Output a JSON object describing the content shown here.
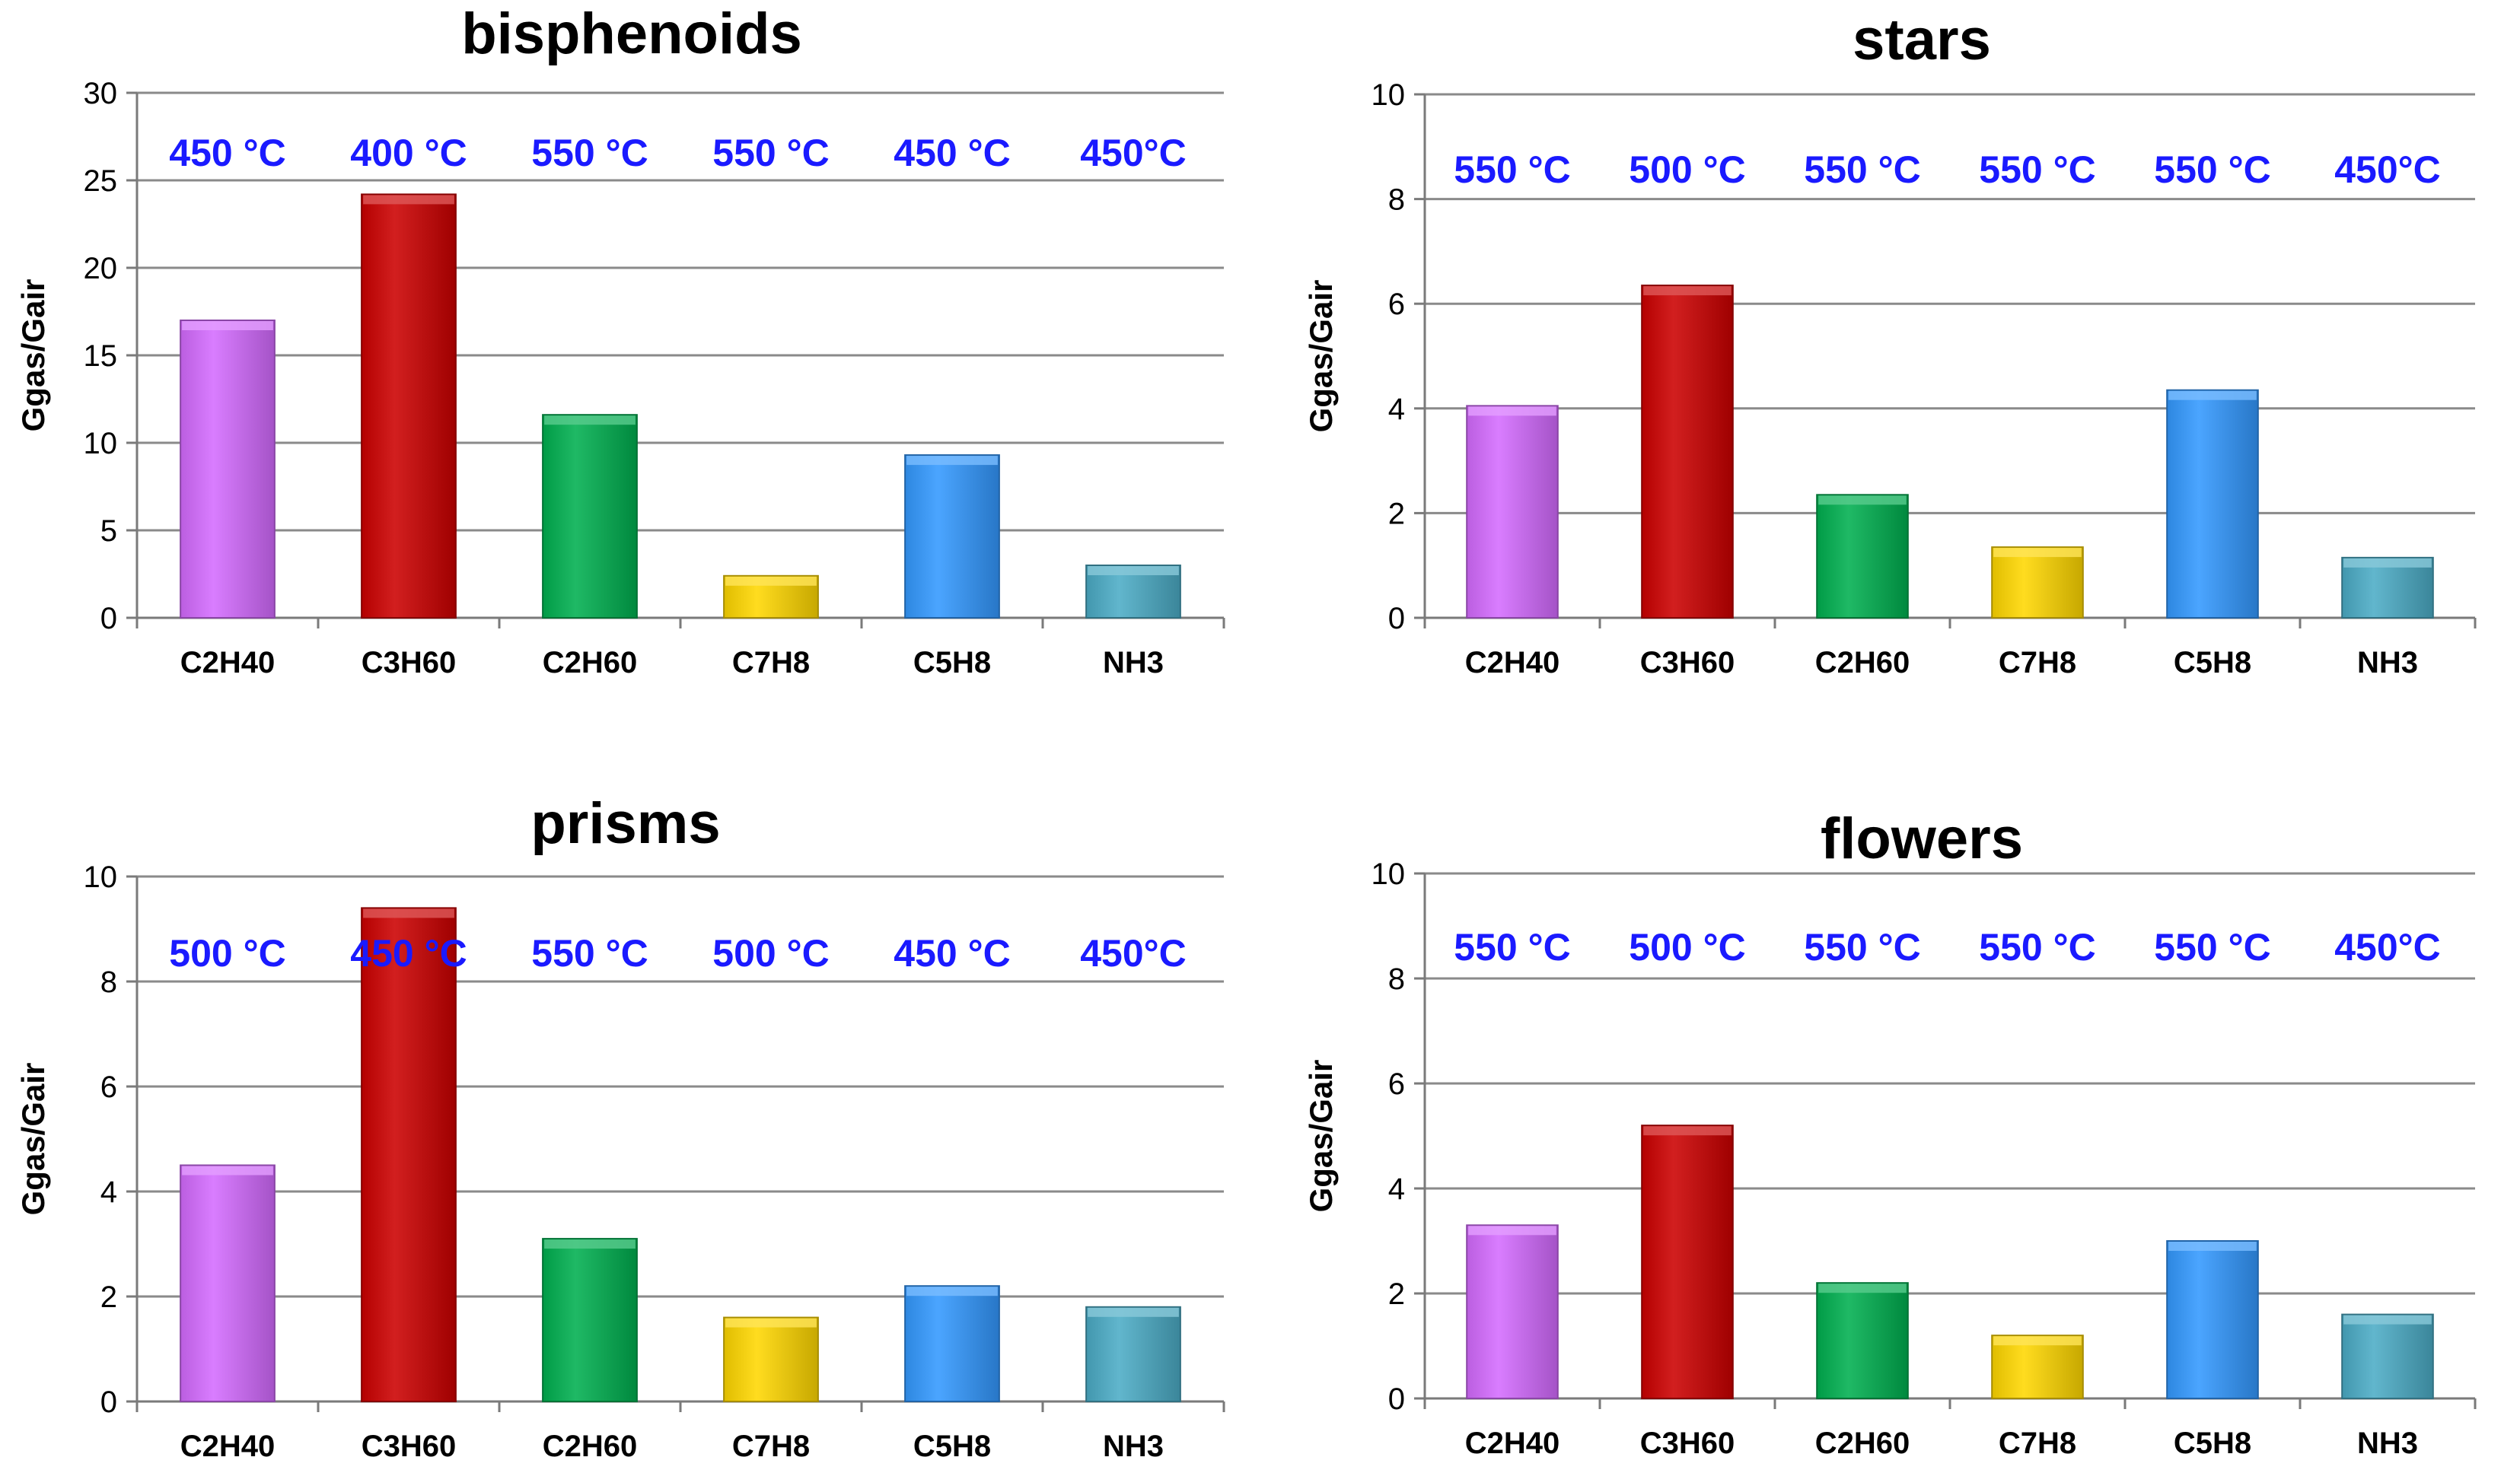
{
  "chart_data": [
    {
      "type": "bar",
      "title": "bisphenoids",
      "ylabel": "Ggas/Gair",
      "xlabel": "",
      "ylim": [
        0,
        30
      ],
      "yticks": [
        0,
        5,
        10,
        15,
        20,
        25,
        30
      ],
      "categories": [
        "C2H40",
        "C3H60",
        "C2H60",
        "C7H8",
        "C5H8",
        "NH3"
      ],
      "values": [
        17,
        24.2,
        11.6,
        2.4,
        9.3,
        3.0
      ],
      "annotations": [
        "450 °C",
        "400 °C",
        "550 °C",
        "550 °C",
        "450 °C",
        "450°C"
      ],
      "colors": [
        "#d46bff",
        "#cc0000",
        "#00b050",
        "#ffd700",
        "#3399ff",
        "#4bacc6"
      ],
      "grid": true
    },
    {
      "type": "bar",
      "title": "stars",
      "ylabel": "Ggas/Gair",
      "xlabel": "",
      "ylim": [
        0,
        10
      ],
      "yticks": [
        0,
        2,
        4,
        6,
        8,
        10
      ],
      "categories": [
        "C2H40",
        "C3H60",
        "C2H60",
        "C7H8",
        "C5H8",
        "NH3"
      ],
      "values": [
        4.05,
        6.35,
        2.35,
        1.35,
        4.35,
        1.15
      ],
      "annotations": [
        "550 °C",
        "500 °C",
        "550 °C",
        "550 °C",
        "550 °C",
        "450°C"
      ],
      "colors": [
        "#d46bff",
        "#cc0000",
        "#00b050",
        "#ffd700",
        "#3399ff",
        "#4bacc6"
      ],
      "grid": true
    },
    {
      "type": "bar",
      "title": "prisms",
      "ylabel": "Ggas/Gair",
      "xlabel": "",
      "ylim": [
        0,
        10
      ],
      "yticks": [
        0,
        2,
        4,
        6,
        8,
        10
      ],
      "categories": [
        "C2H40",
        "C3H60",
        "C2H60",
        "C7H8",
        "C5H8",
        "NH3"
      ],
      "values": [
        4.5,
        9.4,
        3.1,
        1.6,
        2.2,
        1.8
      ],
      "annotations": [
        "500 °C",
        "450 °C",
        "550 °C",
        "500 °C",
        "450 °C",
        "450°C"
      ],
      "colors": [
        "#d46bff",
        "#cc0000",
        "#00b050",
        "#ffd700",
        "#3399ff",
        "#4bacc6"
      ],
      "grid": true
    },
    {
      "type": "bar",
      "title": "flowers",
      "ylabel": "Ggas/Gair",
      "xlabel": "",
      "ylim": [
        0,
        10
      ],
      "yticks": [
        0,
        2,
        4,
        6,
        8,
        10
      ],
      "categories": [
        "C2H40",
        "C3H60",
        "C2H60",
        "C7H8",
        "C5H8",
        "NH3"
      ],
      "values": [
        3.3,
        5.2,
        2.2,
        1.2,
        3.0,
        1.6
      ],
      "annotations": [
        "550 °C",
        "500 °C",
        "550 °C",
        "550 °C",
        "550 °C",
        "450°C"
      ],
      "colors": [
        "#d46bff",
        "#cc0000",
        "#00b050",
        "#ffd700",
        "#3399ff",
        "#4bacc6"
      ],
      "grid": true
    }
  ]
}
